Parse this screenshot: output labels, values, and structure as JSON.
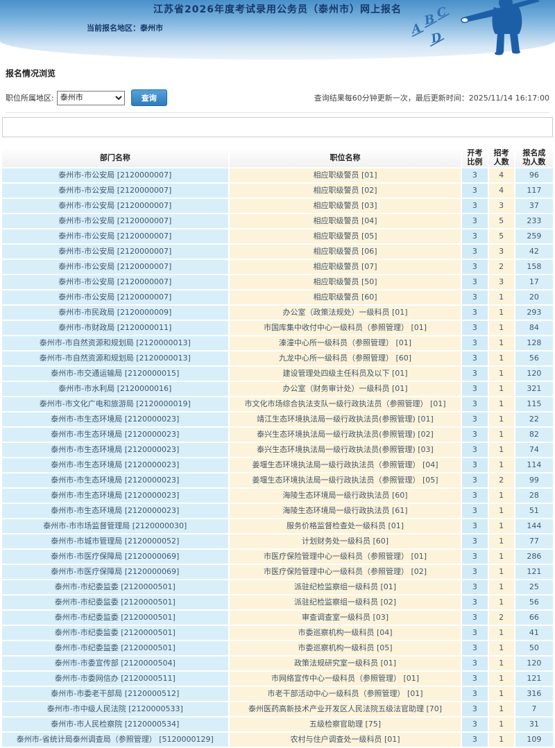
{
  "colors": {
    "header_gradient_top": "#4a90c9",
    "header_gradient_bottom": "#eaf3fa",
    "figure_blue": "#1d5fa7",
    "title_navy": "#16386b",
    "button_blue": "#2e7cba",
    "dept_cell_bg": "#d8effa",
    "position_cell_bg": "#fcf3da",
    "ratio_cell_bg": "#d2ebf8",
    "recruit_cell_bg": "#fbf0d8",
    "cell_text": "#41566b"
  },
  "header": {
    "title": "江苏省2026年度考试录用公务员（泰州市）网上报名",
    "current_area_label": "当前报名地区：",
    "current_area": "泰州市",
    "illustration": {
      "letters": [
        "A",
        "B",
        "C",
        "D"
      ]
    }
  },
  "section": {
    "heading": "报名情况浏览",
    "filter_label": "职位所属地区:",
    "region_selected": "泰州市",
    "query_button": "查询",
    "update_note": "查询结果每60分钟更新一次，最后更新时间：2025/11/14 16:17:00"
  },
  "table": {
    "columns": [
      "部门名称",
      "职位名称",
      "开考\n比例",
      "招考\n人数",
      "报名成\n功人数"
    ],
    "rows": [
      [
        "泰州市-市公安局 [2120000007]",
        "相应职级警员 [01]",
        "3",
        "4",
        "96"
      ],
      [
        "泰州市-市公安局 [2120000007]",
        "相应职级警员 [02]",
        "3",
        "4",
        "117"
      ],
      [
        "泰州市-市公安局 [2120000007]",
        "相应职级警员 [03]",
        "3",
        "3",
        "37"
      ],
      [
        "泰州市-市公安局 [2120000007]",
        "相应职级警员 [04]",
        "3",
        "5",
        "233"
      ],
      [
        "泰州市-市公安局 [2120000007]",
        "相应职级警员 [05]",
        "3",
        "5",
        "259"
      ],
      [
        "泰州市-市公安局 [2120000007]",
        "相应职级警员 [06]",
        "3",
        "3",
        "42"
      ],
      [
        "泰州市-市公安局 [2120000007]",
        "相应职级警员 [07]",
        "3",
        "2",
        "158"
      ],
      [
        "泰州市-市公安局 [2120000007]",
        "相应职级警员 [50]",
        "3",
        "3",
        "17"
      ],
      [
        "泰州市-市公安局 [2120000007]",
        "相应职级警员 [60]",
        "3",
        "1",
        "20"
      ],
      [
        "泰州市-市民政局 [2120000009]",
        "办公室（政策法规处）一级科员 [01]",
        "3",
        "1",
        "293"
      ],
      [
        "泰州市-市财政局 [2120000011]",
        "市国库集中收付中心一级科员（参照管理） [01]",
        "3",
        "1",
        "84"
      ],
      [
        "泰州市-市自然资源和规划局 [2120000013]",
        "溱潼中心所一级科员（参照管理） [01]",
        "3",
        "1",
        "128"
      ],
      [
        "泰州市-市自然资源和规划局 [2120000013]",
        "九龙中心所一级科员（参照管理） [60]",
        "3",
        "1",
        "56"
      ],
      [
        "泰州市-市交通运输局 [2120000015]",
        "建设管理处四级主任科员及以下 [01]",
        "3",
        "1",
        "120"
      ],
      [
        "泰州市-市水利局 [2120000016]",
        "办公室（财务审计处）一级科员 [01]",
        "3",
        "1",
        "321"
      ],
      [
        "泰州市-市文化广电和旅游局 [2120000019]",
        "市文化市场综合执法支队一级行政执法员（参照管理） [01]",
        "3",
        "1",
        "115"
      ],
      [
        "泰州市-市生态环境局 [2120000023]",
        "靖江生态环境执法局一级行政执法员(参照管理) [01]",
        "3",
        "1",
        "22"
      ],
      [
        "泰州市-市生态环境局 [2120000023]",
        "泰兴生态环境执法局一级行政执法员(参照管理) [02]",
        "3",
        "1",
        "82"
      ],
      [
        "泰州市-市生态环境局 [2120000023]",
        "泰兴生态环境执法局一级行政执法员(参照管理) [03]",
        "3",
        "1",
        "74"
      ],
      [
        "泰州市-市生态环境局 [2120000023]",
        "姜堰生态环境执法局一级行政执法员（参照管理） [04]",
        "3",
        "1",
        "114"
      ],
      [
        "泰州市-市生态环境局 [2120000023]",
        "姜堰生态环境执法局一级行政执法员（参照管理） [05]",
        "3",
        "2",
        "99"
      ],
      [
        "泰州市-市生态环境局 [2120000023]",
        "海陵生态环境局一级行政执法员 [60]",
        "3",
        "1",
        "28"
      ],
      [
        "泰州市-市生态环境局 [2120000023]",
        "海陵生态环境局一级行政执法员 [61]",
        "3",
        "1",
        "51"
      ],
      [
        "泰州市-市市场监督管理局 [2120000030]",
        "服务价格监督检查处一级科员 [01]",
        "3",
        "1",
        "144"
      ],
      [
        "泰州市-市城市管理局 [2120000052]",
        "计划财务处一级科员 [60]",
        "3",
        "1",
        "77"
      ],
      [
        "泰州市-市医疗保障局 [2120000069]",
        "市医疗保险管理中心一级科员（参照管理） [01]",
        "3",
        "1",
        "286"
      ],
      [
        "泰州市-市医疗保障局 [2120000069]",
        "市医疗保险管理中心一级科员（参照管理） [02]",
        "3",
        "1",
        "121"
      ],
      [
        "泰州市-市纪委监委 [2120000501]",
        "派驻纪检监察组一级科员 [01]",
        "3",
        "1",
        "25"
      ],
      [
        "泰州市-市纪委监委 [2120000501]",
        "派驻纪检监察组一级科员 [02]",
        "3",
        "1",
        "56"
      ],
      [
        "泰州市-市纪委监委 [2120000501]",
        "审查调查室一级科员 [03]",
        "3",
        "2",
        "66"
      ],
      [
        "泰州市-市纪委监委 [2120000501]",
        "市委巡察机构一级科员 [04]",
        "3",
        "1",
        "41"
      ],
      [
        "泰州市-市纪委监委 [2120000501]",
        "市委巡察机构一级科员 [05]",
        "3",
        "1",
        "50"
      ],
      [
        "泰州市-市委宣传部 [2120000504]",
        "政策法规研究室一级科员 [01]",
        "3",
        "1",
        "120"
      ],
      [
        "泰州市-市委网信办 [2120000511]",
        "市网络宣传中心一级科员（参照管理） [01]",
        "3",
        "1",
        "121"
      ],
      [
        "泰州市-市委老干部局 [2120000512]",
        "市老干部活动中心一级科员（参照管理） [01]",
        "3",
        "1",
        "316"
      ],
      [
        "泰州市-市中级人民法院 [2120000533]",
        "泰州医药高新技术产业开发区人民法院五级法官助理 [70]",
        "3",
        "1",
        "7"
      ],
      [
        "泰州市-市人民检察院 [2120000534]",
        "五级检察官助理 [75]",
        "3",
        "1",
        "31"
      ],
      [
        "泰州市-省统计局泰州调查局（参照管理） [5120000129]",
        "农村与住户调查处一级科员 [01]",
        "3",
        "1",
        "109"
      ]
    ]
  }
}
